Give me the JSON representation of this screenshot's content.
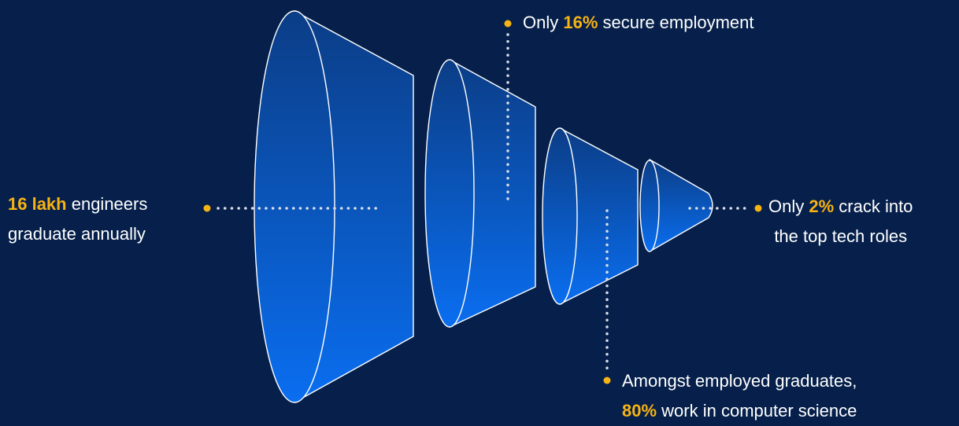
{
  "background_color": "#06204b",
  "accent_color": "#f7b313",
  "dot_color": "#d9dde6",
  "funnel_gradient": {
    "top": "#0b3d86",
    "bottom": "#0a6ef0"
  },
  "labels": {
    "left": {
      "highlight": "16 lakh",
      "line1_rest": " engineers",
      "line2": "graduate annually"
    },
    "top": {
      "prefix": "Only ",
      "highlight": "16%",
      "suffix": " secure employment"
    },
    "right": {
      "prefix": "Only ",
      "highlight": "2%",
      "line1_rest": " crack into",
      "line2": "the top tech roles"
    },
    "bottom": {
      "line1": "Amongst employed graduates,",
      "highlight": "80%",
      "line2_rest": " work in computer science"
    }
  }
}
